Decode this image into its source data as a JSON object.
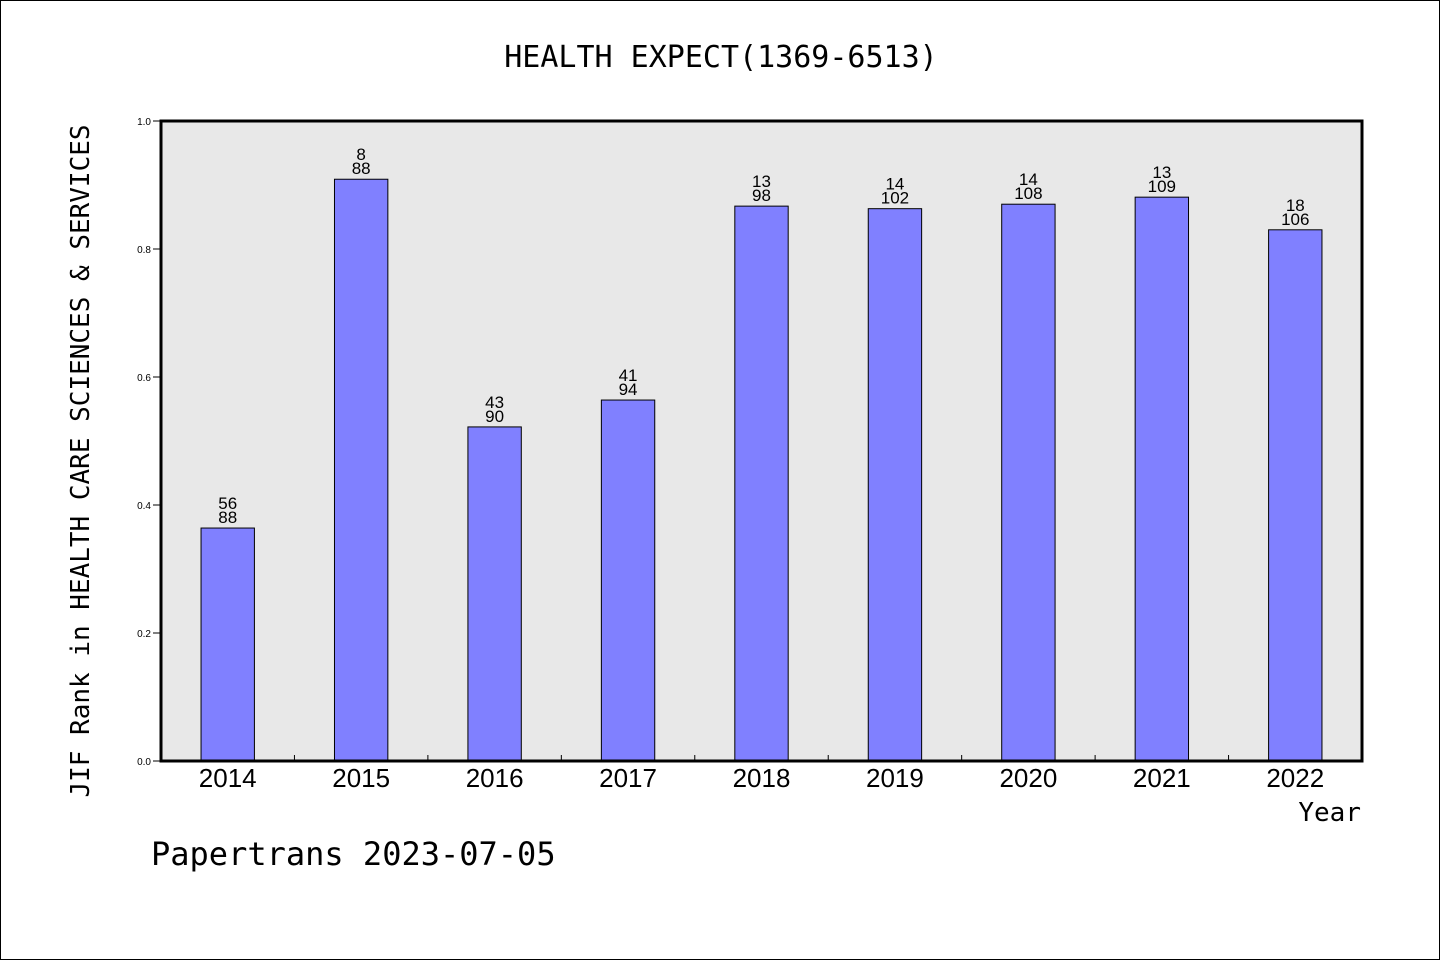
{
  "chart_data": {
    "type": "bar",
    "title": "HEALTH EXPECT(1369-6513)",
    "xlabel": "Year",
    "ylabel": "JIF Rank in HEALTH CARE SCIENCES & SERVICES",
    "ylim": [
      0,
      1.0
    ],
    "yticks": [
      "0.0",
      "0.2",
      "0.4",
      "0.6",
      "0.8",
      "1.0"
    ],
    "grid": false,
    "categories": [
      "2014",
      "2015",
      "2016",
      "2017",
      "2018",
      "2019",
      "2020",
      "2021",
      "2022"
    ],
    "values": [
      0.364,
      0.909,
      0.522,
      0.564,
      0.867,
      0.863,
      0.87,
      0.881,
      0.83
    ],
    "bar_labels": [
      {
        "rank": "56",
        "total": "88"
      },
      {
        "rank": "8",
        "total": "88"
      },
      {
        "rank": "43",
        "total": "90"
      },
      {
        "rank": "41",
        "total": "94"
      },
      {
        "rank": "13",
        "total": "98"
      },
      {
        "rank": "14",
        "total": "102"
      },
      {
        "rank": "14",
        "total": "108"
      },
      {
        "rank": "13",
        "total": "109"
      },
      {
        "rank": "18",
        "total": "106"
      }
    ],
    "footer": "Papertrans 2023-07-05",
    "colors": {
      "bar": "#8080ff",
      "plot_background": "#e8e8e8",
      "axis": "#000000"
    }
  }
}
